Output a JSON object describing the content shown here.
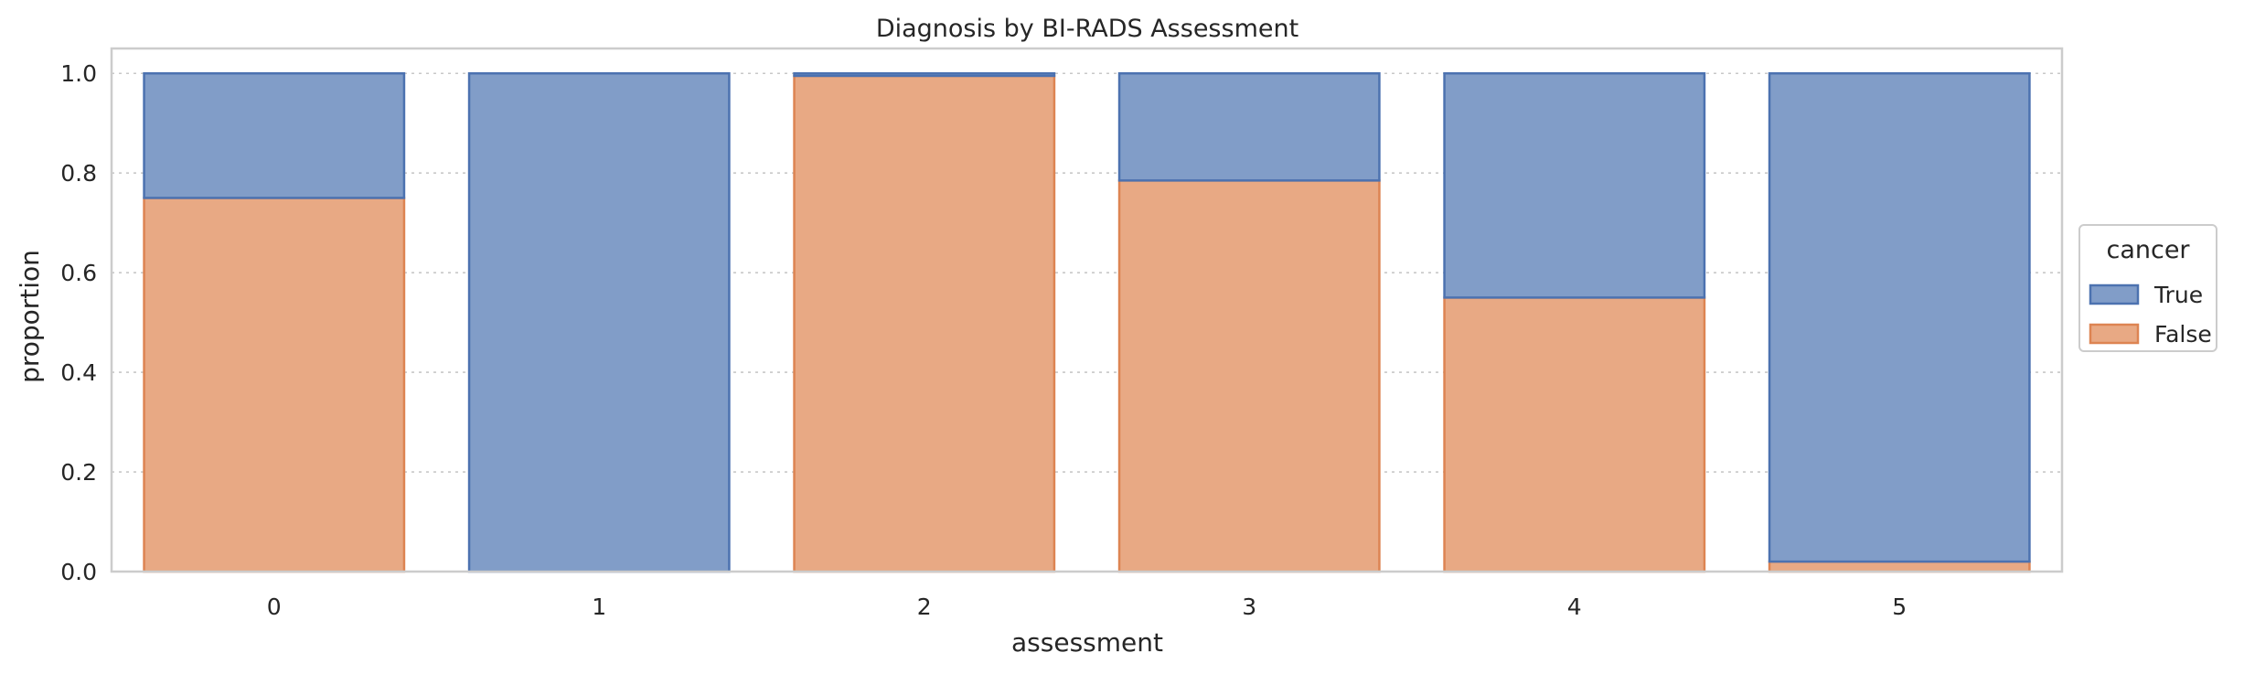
{
  "chart_data": {
    "type": "bar",
    "stacked": true,
    "title": "Diagnosis by BI-RADS Assessment",
    "xlabel": "assessment",
    "ylabel": "proportion",
    "categories": [
      "0",
      "1",
      "2",
      "3",
      "4",
      "5"
    ],
    "ylim": [
      0,
      1.05
    ],
    "yticks": [
      0.0,
      0.2,
      0.4,
      0.6,
      0.8,
      1.0
    ],
    "ytick_labels": [
      "0.0",
      "0.2",
      "0.4",
      "0.6",
      "0.8",
      "1.0"
    ],
    "grid": true,
    "legend": {
      "title": "cancer",
      "placement": "right"
    },
    "series": [
      {
        "name": "False",
        "values": [
          0.75,
          0.0,
          0.995,
          0.785,
          0.55,
          0.02
        ],
        "fill": "#e8a984",
        "stroke": "#dd8452"
      },
      {
        "name": "True",
        "values": [
          0.25,
          1.0,
          0.005,
          0.215,
          0.45,
          0.98
        ],
        "fill": "#819dc8",
        "stroke": "#4c72b0"
      }
    ],
    "legend_order": [
      "True",
      "False"
    ]
  }
}
